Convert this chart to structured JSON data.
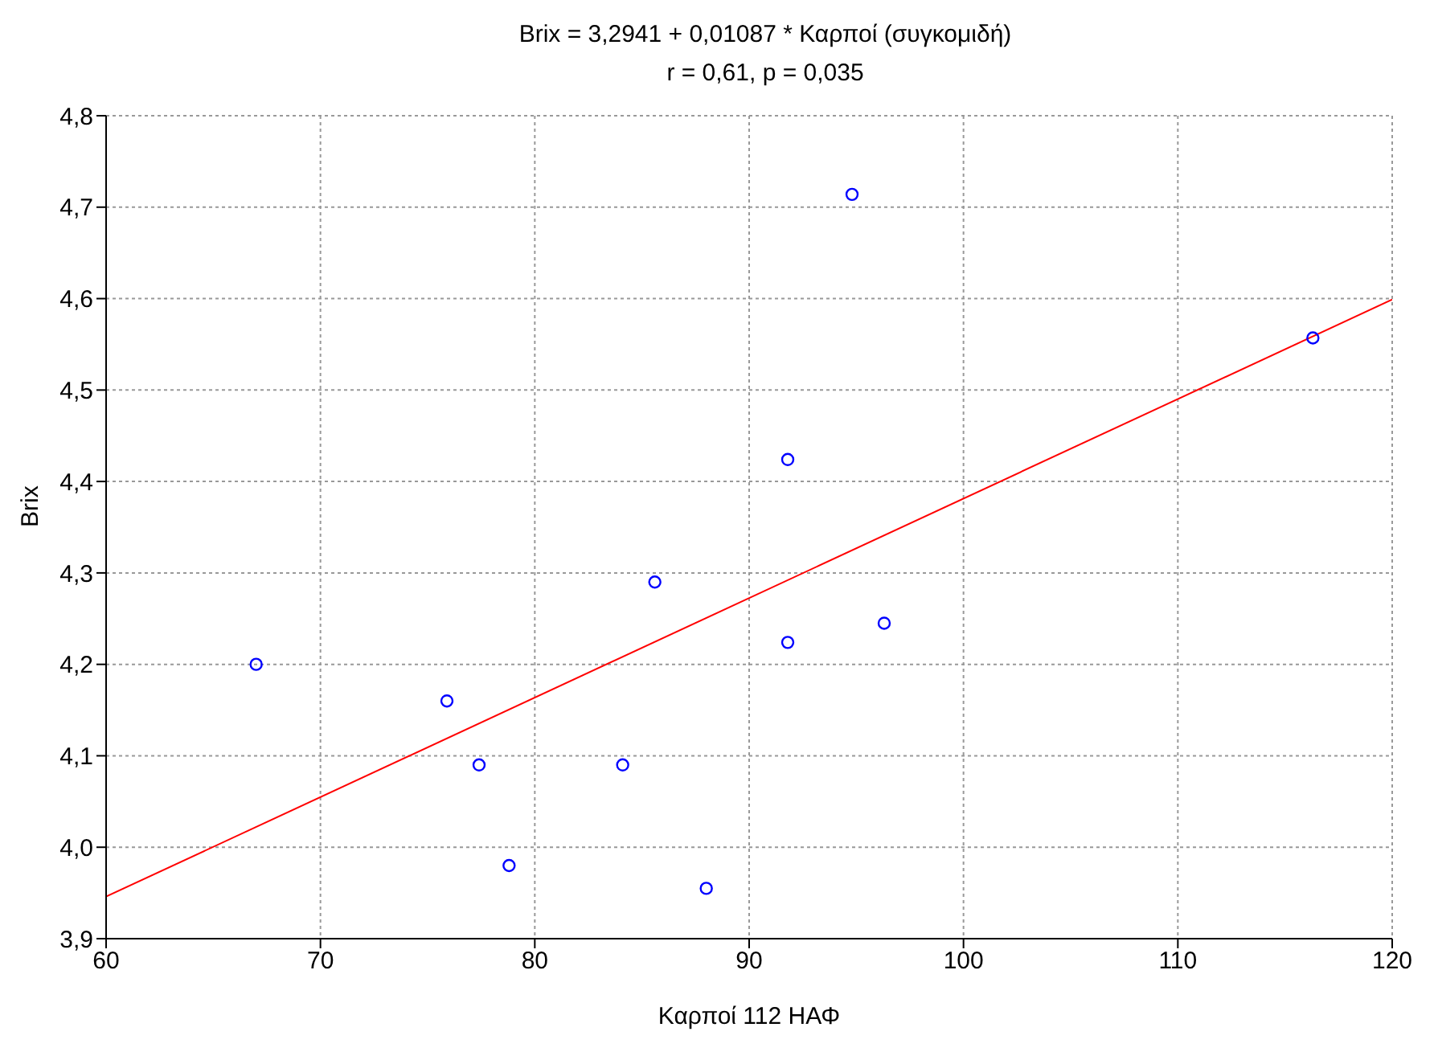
{
  "chart_data": {
    "type": "scatter",
    "title": "Brix = 3,2941 + 0,01087 * Καρποί (συγκομιδή)",
    "subtitle": "r = 0,61, p = 0,035",
    "xlabel": "Καρποί 112 ΗΑΦ",
    "ylabel": "Brix",
    "series": [
      {
        "marker": "circle",
        "color": "#0000ff",
        "x": [
          67.0,
          75.9,
          77.4,
          78.8,
          84.1,
          85.6,
          88.0,
          91.8,
          91.8,
          94.8,
          96.3,
          116.3
        ],
        "values": [
          4.2,
          4.16,
          4.09,
          3.98,
          4.09,
          4.29,
          3.955,
          4.424,
          4.224,
          4.714,
          4.245,
          4.557
        ]
      },
      {
        "type": "line",
        "color": "#ff0000",
        "x": [
          60,
          120
        ],
        "values": [
          3.946,
          4.599
        ]
      }
    ],
    "xlim": [
      60,
      120
    ],
    "xticks": [
      60,
      70,
      80,
      90,
      100,
      110,
      120
    ],
    "ylim": [
      3.9,
      4.8
    ],
    "yticks": [
      {
        "value": 3.9,
        "label": "3,9"
      },
      {
        "value": 4.0,
        "label": "4,0"
      },
      {
        "value": 4.1,
        "label": "4,1"
      },
      {
        "value": 4.2,
        "label": "4,2"
      },
      {
        "value": 4.3,
        "label": "4,3"
      },
      {
        "value": 4.4,
        "label": "4,4"
      },
      {
        "value": 4.5,
        "label": "4,5"
      },
      {
        "value": 4.6,
        "label": "4,6"
      },
      {
        "value": 4.7,
        "label": "4,7"
      },
      {
        "value": 4.8,
        "label": "4,8"
      }
    ],
    "grid": true
  }
}
